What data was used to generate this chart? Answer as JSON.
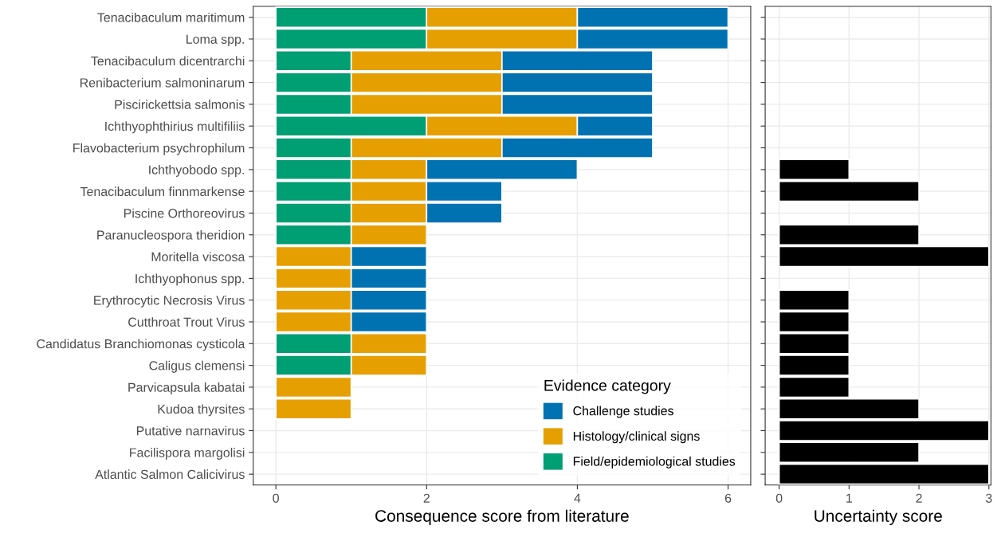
{
  "chart_data": [
    {
      "type": "bar",
      "orientation": "horizontal",
      "stacked": true,
      "xlabel": "Consequence score from literature",
      "legend_title": "Evidence category",
      "legend": "bottom right",
      "grid": true,
      "categories": [
        "Tenacibaculum maritimum",
        "Loma spp.",
        "Tenacibaculum dicentrarchi",
        "Renibacterium salmoninarum",
        "Piscirickettsia salmonis",
        "Ichthyophthirius multifiliis",
        "Flavobacterium psychrophilum",
        "Ichthyobodo spp.",
        "Tenacibaculum finnmarkense",
        "Piscine Orthoreovirus",
        "Paranucleospora theridion",
        "Moritella viscosa",
        "Ichthyophonus spp.",
        "Erythrocytic Necrosis Virus",
        "Cutthroat Trout Virus",
        "Candidatus Branchiomonas cysticola",
        "Caligus clemensi",
        "Parvicapsula kabatai",
        "Kudoa thyrsites",
        "Putative narnavirus",
        "Facilispora margolisi",
        "Atlantic Salmon Calicivirus"
      ],
      "xlim": [
        -0.3,
        6.3
      ],
      "xticks": [
        0,
        2,
        4,
        6
      ],
      "series": [
        {
          "name": "Field/epidemiological studies",
          "color": "#009e73",
          "values": [
            2,
            2,
            1,
            1,
            1,
            2,
            1,
            1,
            1,
            1,
            1,
            0,
            0,
            0,
            0,
            1,
            1,
            0,
            0,
            0,
            0,
            0
          ]
        },
        {
          "name": "Histology/clinical signs",
          "color": "#e69f00",
          "values": [
            2,
            2,
            2,
            2,
            2,
            2,
            2,
            1,
            1,
            1,
            1,
            1,
            1,
            1,
            1,
            1,
            1,
            1,
            1,
            0,
            0,
            0
          ]
        },
        {
          "name": "Challenge studies",
          "color": "#0072b2",
          "values": [
            2,
            2,
            2,
            2,
            2,
            1,
            2,
            2,
            1,
            1,
            0,
            1,
            1,
            1,
            1,
            0,
            0,
            0,
            0,
            0,
            0,
            0
          ]
        }
      ]
    },
    {
      "type": "bar",
      "orientation": "horizontal",
      "xlabel": "Uncertainty score",
      "grid": true,
      "tick_labels": "x",
      "categories": [
        null,
        null,
        null,
        null,
        null,
        null,
        null,
        null,
        null,
        null,
        null,
        null,
        null,
        null,
        null,
        null,
        null,
        null,
        null,
        null,
        null,
        null
      ],
      "xlim": [
        -0.2,
        3.03
      ],
      "xticks": [
        0,
        1,
        2,
        3
      ],
      "values": [
        0,
        0,
        0,
        0,
        0,
        0,
        0,
        1,
        2,
        0,
        2,
        3,
        0,
        1,
        1,
        1,
        1,
        1,
        2,
        3,
        2,
        3
      ],
      "color": "#000000"
    }
  ]
}
